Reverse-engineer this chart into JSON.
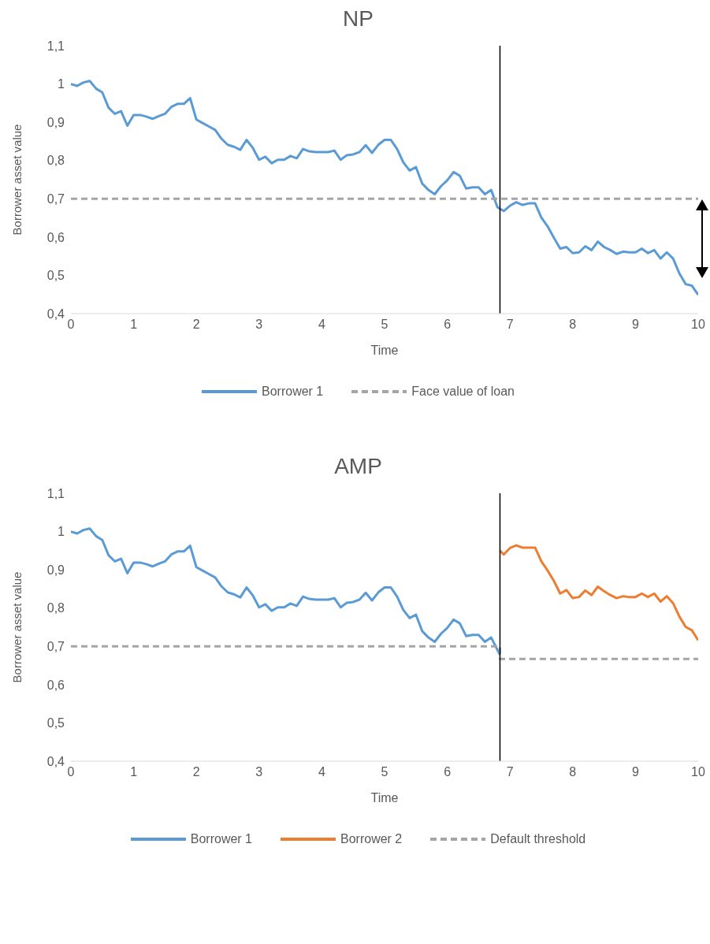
{
  "chart_data": [
    {
      "type": "line",
      "title": "NP",
      "xlabel": "Time",
      "ylabel": "Borrower asset value",
      "xlim": [
        0,
        10
      ],
      "xticks": [
        0,
        1,
        2,
        3,
        4,
        5,
        6,
        7,
        8,
        9,
        10
      ],
      "ylim": [
        0.4,
        1.1
      ],
      "yticks": [
        {
          "value": 0.4,
          "label": "0,4"
        },
        {
          "value": 0.5,
          "label": "0,5"
        },
        {
          "value": 0.6,
          "label": "0,6"
        },
        {
          "value": 0.7,
          "label": "0,7"
        },
        {
          "value": 0.8,
          "label": "0,8"
        },
        {
          "value": 0.9,
          "label": "0,9"
        },
        {
          "value": 1,
          "label": "1"
        },
        {
          "value": 1.1,
          "label": "1,1"
        }
      ],
      "legend": "bottom",
      "marker": "none",
      "ref_lines": [
        {
          "axis": "x",
          "value": 6.84,
          "color": "#000000"
        }
      ],
      "series": [
        {
          "name": "Borrower 1",
          "color": "#5b9bd5",
          "line_style": "solid",
          "x": [
            0,
            0.1,
            0.2,
            0.3,
            0.4,
            0.5,
            0.6,
            0.7,
            0.8,
            0.9,
            1,
            1.1,
            1.2,
            1.3,
            1.4,
            1.5,
            1.6,
            1.7,
            1.8,
            1.9,
            2,
            2.1,
            2.2,
            2.3,
            2.4,
            2.5,
            2.6,
            2.7,
            2.8,
            2.9,
            3,
            3.1,
            3.2,
            3.3,
            3.4,
            3.5,
            3.6,
            3.7,
            3.8,
            3.9,
            4,
            4.1,
            4.2,
            4.3,
            4.4,
            4.5,
            4.6,
            4.7,
            4.8,
            4.9,
            5,
            5.1,
            5.2,
            5.3,
            5.4,
            5.5,
            5.6,
            5.7,
            5.8,
            5.9,
            6,
            6.1,
            6.2,
            6.3,
            6.4,
            6.5,
            6.6,
            6.7,
            6.8,
            6.9,
            7,
            7.1,
            7.2,
            7.3,
            7.4,
            7.5,
            7.6,
            7.7,
            7.8,
            7.9,
            8,
            8.1,
            8.2,
            8.3,
            8.4,
            8.5,
            8.6,
            8.7,
            8.8,
            8.9,
            9,
            9.1,
            9.2,
            9.3,
            9.4,
            9.5,
            9.6,
            9.7,
            9.8,
            9.9,
            10
          ],
          "values": [
            1.0,
            0.995,
            1.004,
            1.008,
            0.988,
            0.978,
            0.938,
            0.922,
            0.929,
            0.891,
            0.919,
            0.919,
            0.915,
            0.909,
            0.916,
            0.922,
            0.94,
            0.948,
            0.948,
            0.963,
            0.907,
            0.898,
            0.889,
            0.88,
            0.857,
            0.841,
            0.836,
            0.828,
            0.854,
            0.833,
            0.802,
            0.81,
            0.793,
            0.802,
            0.802,
            0.812,
            0.806,
            0.83,
            0.824,
            0.822,
            0.822,
            0.822,
            0.826,
            0.802,
            0.814,
            0.816,
            0.822,
            0.84,
            0.82,
            0.841,
            0.854,
            0.854,
            0.83,
            0.795,
            0.774,
            0.783,
            0.74,
            0.723,
            0.712,
            0.733,
            0.748,
            0.77,
            0.76,
            0.727,
            0.73,
            0.73,
            0.712,
            0.723,
            0.678,
            0.668,
            0.682,
            0.691,
            0.684,
            0.688,
            0.688,
            0.651,
            0.628,
            0.598,
            0.57,
            0.574,
            0.558,
            0.56,
            0.576,
            0.566,
            0.588,
            0.574,
            0.566,
            0.556,
            0.562,
            0.56,
            0.56,
            0.57,
            0.558,
            0.566,
            0.544,
            0.56,
            0.544,
            0.505,
            0.477,
            0.473,
            0.449
          ]
        },
        {
          "name": "Face value of loan",
          "color": "#a5a5a5",
          "line_style": "dashed",
          "x": [
            0,
            10
          ],
          "values": [
            0.7,
            0.7
          ]
        }
      ]
    },
    {
      "type": "line",
      "title": "AMP",
      "xlabel": "Time",
      "ylabel": "Borrower asset value",
      "xlim": [
        0,
        10
      ],
      "xticks": [
        0,
        1,
        2,
        3,
        4,
        5,
        6,
        7,
        8,
        9,
        10
      ],
      "ylim": [
        0.4,
        1.1
      ],
      "yticks": [
        {
          "value": 0.4,
          "label": "0,4"
        },
        {
          "value": 0.5,
          "label": "0,5"
        },
        {
          "value": 0.6,
          "label": "0,6"
        },
        {
          "value": 0.7,
          "label": "0,7"
        },
        {
          "value": 0.8,
          "label": "0,8"
        },
        {
          "value": 0.9,
          "label": "0,9"
        },
        {
          "value": 1,
          "label": "1"
        },
        {
          "value": 1.1,
          "label": "1,1"
        }
      ],
      "legend": "bottom",
      "marker": "none",
      "ref_lines": [
        {
          "axis": "x",
          "value": 6.84,
          "color": "#000000"
        }
      ],
      "series": [
        {
          "name": "Borrower 1",
          "color": "#5b9bd5",
          "line_style": "solid",
          "x": [
            0,
            0.1,
            0.2,
            0.3,
            0.4,
            0.5,
            0.6,
            0.7,
            0.8,
            0.9,
            1,
            1.1,
            1.2,
            1.3,
            1.4,
            1.5,
            1.6,
            1.7,
            1.8,
            1.9,
            2,
            2.1,
            2.2,
            2.3,
            2.4,
            2.5,
            2.6,
            2.7,
            2.8,
            2.9,
            3,
            3.1,
            3.2,
            3.3,
            3.4,
            3.5,
            3.6,
            3.7,
            3.8,
            3.9,
            4,
            4.1,
            4.2,
            4.3,
            4.4,
            4.5,
            4.6,
            4.7,
            4.8,
            4.9,
            5,
            5.1,
            5.2,
            5.3,
            5.4,
            5.5,
            5.6,
            5.7,
            5.8,
            5.9,
            6,
            6.1,
            6.2,
            6.3,
            6.4,
            6.5,
            6.6,
            6.7,
            6.84
          ],
          "values": [
            1.0,
            0.995,
            1.004,
            1.008,
            0.988,
            0.978,
            0.938,
            0.922,
            0.929,
            0.891,
            0.919,
            0.919,
            0.915,
            0.909,
            0.916,
            0.922,
            0.94,
            0.948,
            0.948,
            0.963,
            0.907,
            0.898,
            0.889,
            0.88,
            0.857,
            0.841,
            0.836,
            0.828,
            0.854,
            0.833,
            0.802,
            0.81,
            0.793,
            0.802,
            0.802,
            0.812,
            0.806,
            0.83,
            0.824,
            0.822,
            0.822,
            0.822,
            0.826,
            0.802,
            0.814,
            0.816,
            0.822,
            0.84,
            0.82,
            0.841,
            0.854,
            0.854,
            0.83,
            0.795,
            0.774,
            0.783,
            0.74,
            0.723,
            0.712,
            0.733,
            0.748,
            0.77,
            0.76,
            0.727,
            0.73,
            0.73,
            0.712,
            0.723,
            0.678
          ]
        },
        {
          "name": "Borrower 2",
          "color": "#ed7d31",
          "line_style": "solid",
          "x": [
            6.84,
            6.9,
            7,
            7.1,
            7.2,
            7.3,
            7.4,
            7.5,
            7.6,
            7.7,
            7.8,
            7.9,
            8,
            8.1,
            8.2,
            8.3,
            8.4,
            8.5,
            8.6,
            8.7,
            8.8,
            8.9,
            9,
            9.1,
            9.2,
            9.3,
            9.4,
            9.5,
            9.6,
            9.7,
            9.8,
            9.9,
            10
          ],
          "values": [
            0.95,
            0.94,
            0.957,
            0.964,
            0.958,
            0.958,
            0.958,
            0.922,
            0.898,
            0.871,
            0.838,
            0.847,
            0.826,
            0.829,
            0.846,
            0.834,
            0.856,
            0.844,
            0.834,
            0.826,
            0.831,
            0.829,
            0.829,
            0.838,
            0.829,
            0.838,
            0.817,
            0.831,
            0.813,
            0.778,
            0.751,
            0.742,
            0.716
          ]
        },
        {
          "name": "Default threshold",
          "color": "#a5a5a5",
          "line_style": "dashed",
          "x": [
            0,
            6.84,
            6.84,
            10
          ],
          "values": [
            0.7,
            0.7,
            0.667,
            0.667
          ]
        }
      ]
    }
  ]
}
